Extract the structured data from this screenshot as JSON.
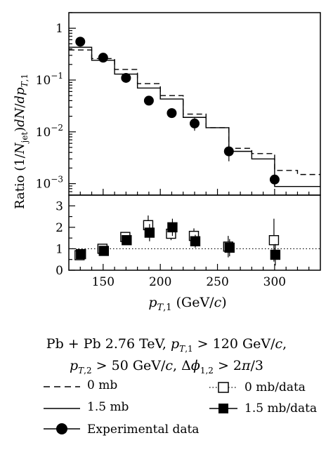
{
  "chart_data": {
    "type": "line",
    "ylabel": "Ratio (1/N_jet)dN/dp_T,1",
    "xlabel": "p_T,1 (GeV/c)",
    "x_ticks": [
      "150",
      "200",
      "250",
      "300"
    ],
    "xlim": [
      120,
      340
    ],
    "top_panel": {
      "yscale": "log",
      "ylim": [
        0.0006,
        2
      ],
      "y_ticks": [
        {
          "value": 1,
          "label": "1"
        },
        {
          "value": 0.1,
          "label": "10^-1"
        },
        {
          "value": 0.01,
          "label": "10^-2"
        },
        {
          "value": 0.001,
          "label": "10^-3"
        }
      ],
      "bin_edges": [
        120,
        140,
        160,
        180,
        200,
        220,
        240,
        260,
        280,
        300,
        320,
        340
      ],
      "series": [
        {
          "name": "0 mb",
          "style": "dashed",
          "values": [
            0.38,
            0.26,
            0.16,
            0.085,
            0.05,
            0.022,
            0.012,
            0.0048,
            0.0038,
            0.0018,
            0.0015
          ]
        },
        {
          "name": "1.5 mb",
          "style": "solid",
          "values": [
            0.43,
            0.24,
            0.13,
            0.07,
            0.043,
            0.019,
            0.012,
            0.0042,
            0.003,
            0.00088,
            0.00088
          ]
        },
        {
          "name": "Experimental data",
          "style": "markers",
          "x": [
            130,
            150,
            170,
            190,
            210,
            230,
            260,
            300
          ],
          "y": [
            0.55,
            0.27,
            0.11,
            0.04,
            0.023,
            0.0145,
            0.0042,
            0.0012
          ],
          "err": [
            0.02,
            0.015,
            0.01,
            0.004,
            0.004,
            0.004,
            0.0015,
            0.0003
          ]
        }
      ]
    },
    "bottom_panel": {
      "ylim": [
        0,
        3.5
      ],
      "y_ticks": [
        "0",
        "1",
        "2",
        "3"
      ],
      "reference_line": 1,
      "series": [
        {
          "name": "0 mb/data",
          "marker": "open-square",
          "x": [
            130,
            150,
            170,
            190,
            210,
            230,
            260,
            300
          ],
          "y": [
            0.7,
            1.0,
            1.55,
            2.1,
            1.7,
            1.6,
            1.1,
            1.4
          ],
          "err": [
            0.1,
            0.1,
            0.15,
            0.45,
            0.3,
            0.35,
            0.5,
            1.0
          ]
        },
        {
          "name": "1.5 mb/data",
          "marker": "filled-square",
          "x": [
            130,
            150,
            170,
            190,
            210,
            230,
            260,
            300
          ],
          "y": [
            0.75,
            0.9,
            1.4,
            1.75,
            2.0,
            1.35,
            1.05,
            0.72
          ],
          "err": [
            0.1,
            0.1,
            0.15,
            0.4,
            0.4,
            0.3,
            0.4,
            0.5
          ]
        }
      ]
    }
  },
  "caption": {
    "line1": "Pb + Pb 2.76 TeV, p_T,1 > 120 GeV/c,",
    "line2": "p_T,2 > 50 GeV/c, Δφ_1,2 > 2π/3"
  },
  "legend": {
    "dashed": "0 mb",
    "solid": "1.5 mb",
    "open_square": "0 mb/data",
    "filled_square": "1.5 mb/data",
    "circle": "Experimental data"
  }
}
